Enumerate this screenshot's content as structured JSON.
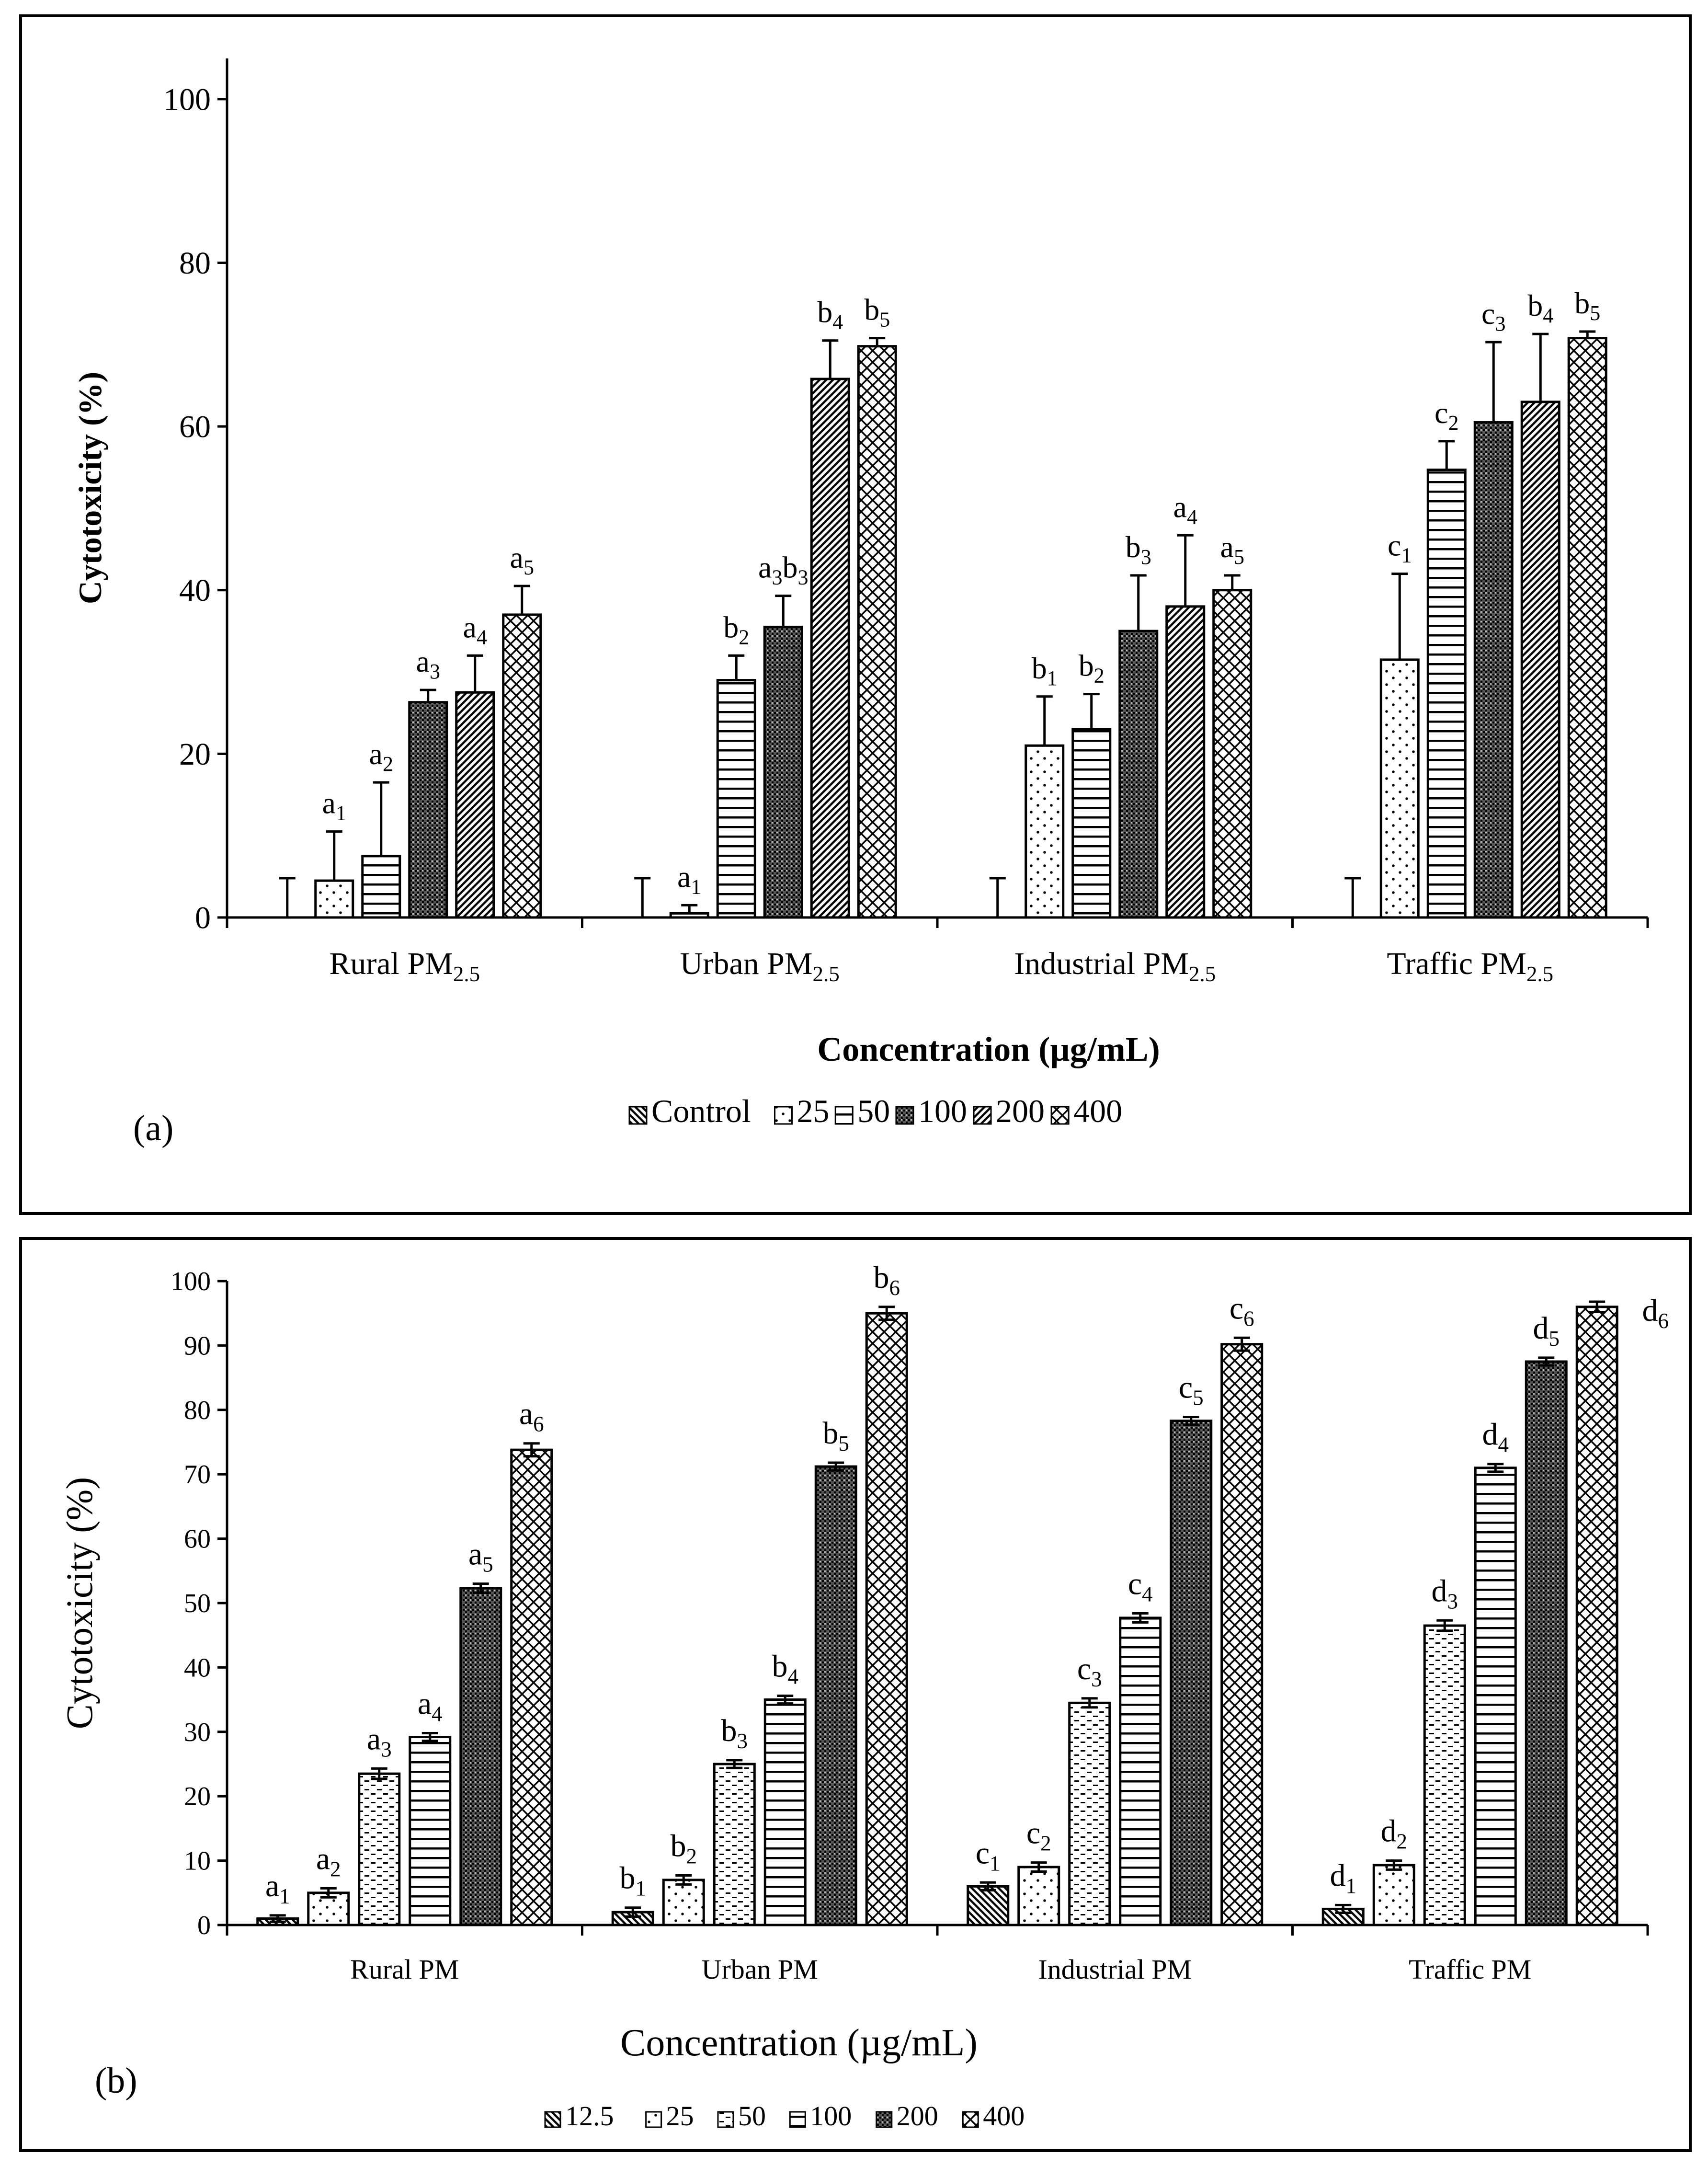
{
  "chart_data": [
    {
      "type": "bar",
      "panel_label": "(a)",
      "title": "",
      "xlabel": "Concentration (µg/mL)",
      "ylabel": "Cytotoxicity (%)",
      "ylim": [
        0,
        110
      ],
      "yticks": [
        "0",
        "20",
        "40",
        "60",
        "80",
        "100"
      ],
      "categories": [
        {
          "name": "Rural PM",
          "sub": "2.5"
        },
        {
          "name": "Urban PM",
          "sub": "2.5"
        },
        {
          "name": "Industrial PM",
          "sub": "2.5"
        },
        {
          "name": "Traffic PM",
          "sub": "2.5"
        }
      ],
      "legend_position": "bottom",
      "series": [
        {
          "name": "Control",
          "pattern": "diag",
          "values": [
            0,
            0,
            0,
            0
          ],
          "errors": [
            4.8,
            4.8,
            4.8,
            4.8
          ],
          "labels": [
            null,
            null,
            null,
            null
          ]
        },
        {
          "name": "25",
          "pattern": "dots",
          "values": [
            4.5,
            0.5,
            21,
            31.5
          ],
          "errors": [
            6,
            1,
            6,
            10.5
          ],
          "labels": [
            {
              "t": "a",
              "s": "1"
            },
            {
              "t": "a",
              "s": "1"
            },
            {
              "t": "b",
              "s": "1"
            },
            {
              "t": "c",
              "s": "1"
            }
          ]
        },
        {
          "name": "50",
          "pattern": "hlines",
          "values": [
            7.5,
            29,
            23,
            54.7
          ],
          "errors": [
            9,
            3,
            4.3,
            3.5
          ],
          "labels": [
            {
              "t": "a",
              "s": "2"
            },
            {
              "t": "b",
              "s": "2"
            },
            {
              "t": "b",
              "s": "2"
            },
            {
              "t": "c",
              "s": "2"
            }
          ]
        },
        {
          "name": "100",
          "pattern": "dense",
          "values": [
            26.3,
            35.5,
            35,
            60.5
          ],
          "errors": [
            1.5,
            3.8,
            6.8,
            9.8
          ],
          "labels": [
            {
              "t": "a",
              "s": "3"
            },
            {
              "t": "a",
              "s": "3",
              "t2": "b",
              "s2": "3"
            },
            {
              "t": "b",
              "s": "3"
            },
            {
              "t": "c",
              "s": "3"
            }
          ]
        },
        {
          "name": "200",
          "pattern": "rdiag",
          "values": [
            27.5,
            65.8,
            38,
            63
          ],
          "errors": [
            4.5,
            4.7,
            8.7,
            8.3
          ],
          "labels": [
            {
              "t": "a",
              "s": "4"
            },
            {
              "t": "b",
              "s": "4"
            },
            {
              "t": "a",
              "s": "4"
            },
            {
              "t": "b",
              "s": "4"
            }
          ]
        },
        {
          "name": "400",
          "pattern": "cross",
          "values": [
            37,
            69.8,
            40,
            70.8
          ],
          "errors": [
            3.5,
            1,
            1.8,
            0.8
          ],
          "labels": [
            {
              "t": "a",
              "s": "5"
            },
            {
              "t": "b",
              "s": "5"
            },
            {
              "t": "a",
              "s": "5"
            },
            {
              "t": "b",
              "s": "5"
            }
          ]
        }
      ]
    },
    {
      "type": "bar",
      "panel_label": "(b)",
      "title": "",
      "xlabel": "Concentration (µg/mL)",
      "ylabel": "Cytotoxicity (%)",
      "ylim": [
        0,
        100
      ],
      "yticks": [
        "0",
        "10",
        "20",
        "30",
        "40",
        "50",
        "60",
        "70",
        "80",
        "90",
        "100"
      ],
      "categories": [
        {
          "name": "Rural PM",
          "sub": ""
        },
        {
          "name": "Urban PM",
          "sub": ""
        },
        {
          "name": "Industrial PM",
          "sub": ""
        },
        {
          "name": "Traffic PM",
          "sub": ""
        }
      ],
      "legend_position": "bottom",
      "series": [
        {
          "name": "12.5",
          "pattern": "diag",
          "values": [
            1,
            2,
            6,
            2.5
          ],
          "errors": [
            0.5,
            0.7,
            0.6,
            0.6
          ],
          "labels": [
            {
              "t": "a",
              "s": "1"
            },
            {
              "t": "b",
              "s": "1"
            },
            {
              "t": "c",
              "s": "1"
            },
            {
              "t": "d",
              "s": "1"
            }
          ]
        },
        {
          "name": "25",
          "pattern": "dots",
          "values": [
            5,
            7,
            9,
            9.3
          ],
          "errors": [
            0.7,
            0.7,
            0.7,
            0.7
          ],
          "labels": [
            {
              "t": "a",
              "s": "2"
            },
            {
              "t": "b",
              "s": "2"
            },
            {
              "t": "c",
              "s": "2"
            },
            {
              "t": "d",
              "s": "2"
            }
          ]
        },
        {
          "name": "50",
          "pattern": "dash",
          "values": [
            23.5,
            25,
            34.5,
            46.5
          ],
          "errors": [
            0.8,
            0.6,
            0.7,
            0.8
          ],
          "labels": [
            {
              "t": "a",
              "s": "3"
            },
            {
              "t": "b",
              "s": "3"
            },
            {
              "t": "c",
              "s": "3"
            },
            {
              "t": "d",
              "s": "3"
            }
          ]
        },
        {
          "name": "100",
          "pattern": "hlines",
          "values": [
            29.2,
            35,
            47.7,
            71
          ],
          "errors": [
            0.6,
            0.6,
            0.7,
            0.6
          ],
          "labels": [
            {
              "t": "a",
              "s": "4"
            },
            {
              "t": "b",
              "s": "4"
            },
            {
              "t": "c",
              "s": "4"
            },
            {
              "t": "d",
              "s": "4"
            }
          ]
        },
        {
          "name": "200",
          "pattern": "dense",
          "values": [
            52.3,
            71.2,
            78.3,
            87.5
          ],
          "errors": [
            0.7,
            0.6,
            0.6,
            0.6
          ],
          "labels": [
            {
              "t": "a",
              "s": "5"
            },
            {
              "t": "b",
              "s": "5"
            },
            {
              "t": "c",
              "s": "5"
            },
            {
              "t": "d",
              "s": "5"
            }
          ]
        },
        {
          "name": "400",
          "pattern": "cross",
          "values": [
            73.8,
            95,
            90.2,
            96
          ],
          "errors": [
            1,
            1,
            1,
            0.8
          ],
          "labels": [
            {
              "t": "a",
              "s": "6"
            },
            {
              "t": "b",
              "s": "6"
            },
            {
              "t": "c",
              "s": "6"
            },
            {
              "t": "d",
              "s": "6"
            }
          ]
        }
      ]
    }
  ]
}
